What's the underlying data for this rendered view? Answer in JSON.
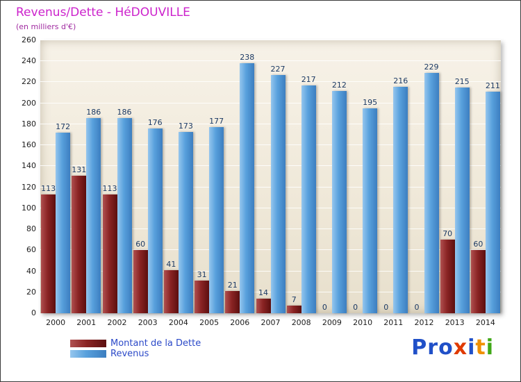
{
  "header": {
    "title": "Revenus/Dette - HéDOUVILLE",
    "subtitle": "(en milliers d'€)"
  },
  "chart_data": {
    "type": "bar",
    "title": "Revenus/Dette - HéDOUVILLE",
    "subtitle": "(en milliers d'€)",
    "categories": [
      "2000",
      "2001",
      "2002",
      "2003",
      "2004",
      "2005",
      "2006",
      "2007",
      "2008",
      "2009",
      "2010",
      "2011",
      "2012",
      "2013",
      "2014"
    ],
    "series": [
      {
        "name": "Montant de la Dette",
        "color": "#7a1a1a",
        "values": [
          113,
          131,
          113,
          60,
          41,
          31,
          21,
          14,
          7,
          0,
          0,
          0,
          0,
          70,
          60
        ]
      },
      {
        "name": "Revenus",
        "color": "#4a94d8",
        "values": [
          172,
          186,
          186,
          176,
          173,
          177,
          238,
          227,
          217,
          212,
          195,
          216,
          229,
          215,
          211
        ]
      }
    ],
    "ylim": [
      0,
      260
    ],
    "ytick_step": 20,
    "xlabel": "",
    "ylabel": "",
    "grid": true,
    "legend_position": "bottom-left"
  },
  "legend": {
    "items": [
      {
        "label": "Montant de la Dette",
        "style": "dette"
      },
      {
        "label": "Revenus",
        "style": "revenus"
      }
    ]
  },
  "logo": {
    "text": "Proxiti",
    "letters": [
      {
        "char": "P",
        "color": "#2050c8"
      },
      {
        "char": "r",
        "color": "#2050c8"
      },
      {
        "char": "o",
        "color": "#2050c8"
      },
      {
        "char": "x",
        "color": "#e03a00"
      },
      {
        "char": "i",
        "color": "#2050c8"
      },
      {
        "char": "t",
        "color": "#f09000"
      },
      {
        "char": "i",
        "color": "#40a818"
      }
    ]
  },
  "colors": {
    "title": "#cc22cc",
    "subtitle": "#a02aa0",
    "value_label": "#1c3a64",
    "legend_text": "#2b49c8",
    "plot_bg": "#efe8d8"
  }
}
